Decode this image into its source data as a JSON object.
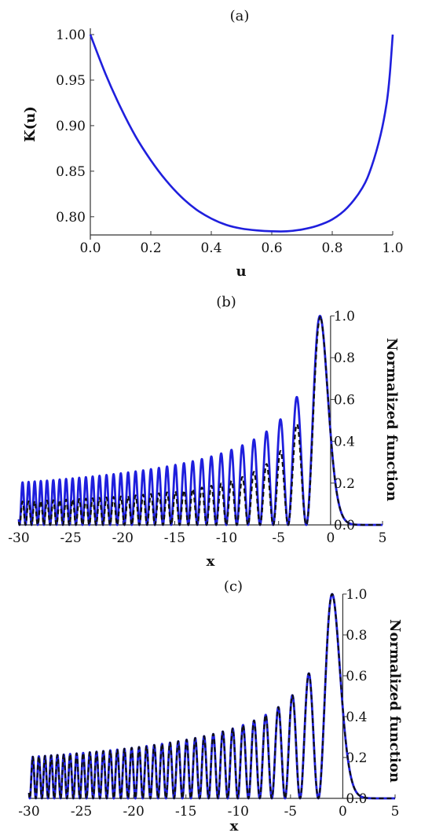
{
  "chart_data": [
    {
      "panel_label": "(a)",
      "type": "line",
      "xlabel": "u",
      "ylabel": "K(u)",
      "xlim": [
        0.0,
        1.0
      ],
      "ylim": [
        0.78,
        1.0
      ],
      "x_ticks": [
        "0.0",
        "0.2",
        "0.4",
        "0.6",
        "0.8",
        "1.0"
      ],
      "y_ticks": [
        "0.80",
        "0.85",
        "0.90",
        "0.95",
        "1.00"
      ],
      "series": [
        {
          "style": "solid",
          "color": "#1f1fdd",
          "x": [
            0.0,
            0.05,
            0.1,
            0.15,
            0.2,
            0.25,
            0.3,
            0.35,
            0.4,
            0.45,
            0.5,
            0.55,
            0.6,
            0.65,
            0.7,
            0.75,
            0.8,
            0.85,
            0.9,
            0.93,
            0.96,
            0.98,
            0.99,
            1.0
          ],
          "y": [
            1.0,
            0.957,
            0.92,
            0.888,
            0.862,
            0.84,
            0.822,
            0.808,
            0.798,
            0.791,
            0.787,
            0.785,
            0.784,
            0.784,
            0.786,
            0.79,
            0.797,
            0.81,
            0.832,
            0.855,
            0.89,
            0.925,
            0.955,
            1.0
          ]
        }
      ]
    },
    {
      "panel_label": "(b)",
      "type": "line",
      "xlabel": "x",
      "ylabel": "Normalized function",
      "xlim": [
        -30,
        5
      ],
      "ylim": [
        0.0,
        1.0
      ],
      "x_ticks": [
        "-30",
        "-25",
        "-20",
        "-15",
        "-10",
        "-5",
        "0",
        "5"
      ],
      "y_ticks": [
        "0.0",
        "0.2",
        "0.4",
        "0.6",
        "0.8",
        "1.0"
      ],
      "y_axis_at_x": 0,
      "series": [
        {
          "style": "solid",
          "color": "#1f1fdd",
          "function": "airy_squared"
        },
        {
          "style": "dashed",
          "color": "#111111",
          "function": "airy_squared_approx_low"
        }
      ]
    },
    {
      "panel_label": "(c)",
      "type": "line",
      "xlabel": "x",
      "ylabel": "Normalized function",
      "xlim": [
        -30,
        5
      ],
      "ylim": [
        0.0,
        1.0
      ],
      "x_ticks": [
        "-30",
        "-25",
        "-20",
        "-15",
        "-10",
        "-5",
        "0",
        "5"
      ],
      "y_ticks": [
        "0.0",
        "0.2",
        "0.4",
        "0.6",
        "0.8",
        "1.0"
      ],
      "y_axis_at_x": 0,
      "series": [
        {
          "style": "solid",
          "color": "#1f1fdd",
          "function": "airy_squared"
        },
        {
          "style": "dashed",
          "color": "#111111",
          "function": "airy_squared"
        }
      ]
    }
  ]
}
